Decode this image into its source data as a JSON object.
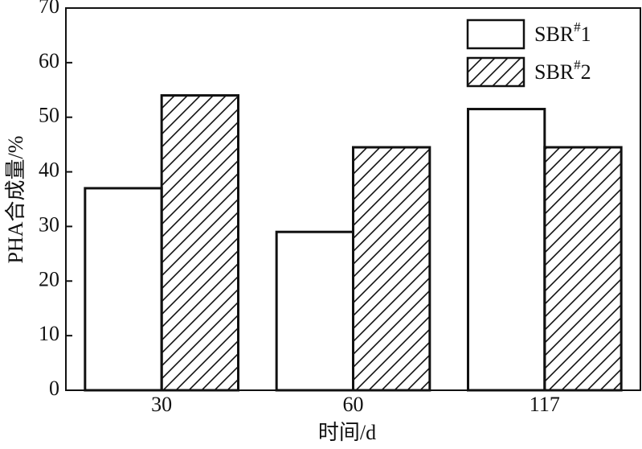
{
  "chart_data": {
    "type": "bar",
    "x_label": "时间/d",
    "y_label": "PHA合成量/%",
    "categories": [
      "30",
      "60",
      "117"
    ],
    "series": [
      {
        "name": "SBR#1",
        "color": "#ffffff",
        "pattern": "none",
        "values": [
          37,
          29,
          51.5
        ]
      },
      {
        "name": "SBR#2",
        "color": "#ffffff",
        "pattern": "hatch",
        "values": [
          54,
          44.5,
          44.5
        ]
      }
    ],
    "ylim": [
      0,
      70
    ],
    "yticks": [
      0,
      10,
      20,
      30,
      40,
      50,
      60,
      70
    ],
    "legend": "upper right",
    "grid": false
  }
}
